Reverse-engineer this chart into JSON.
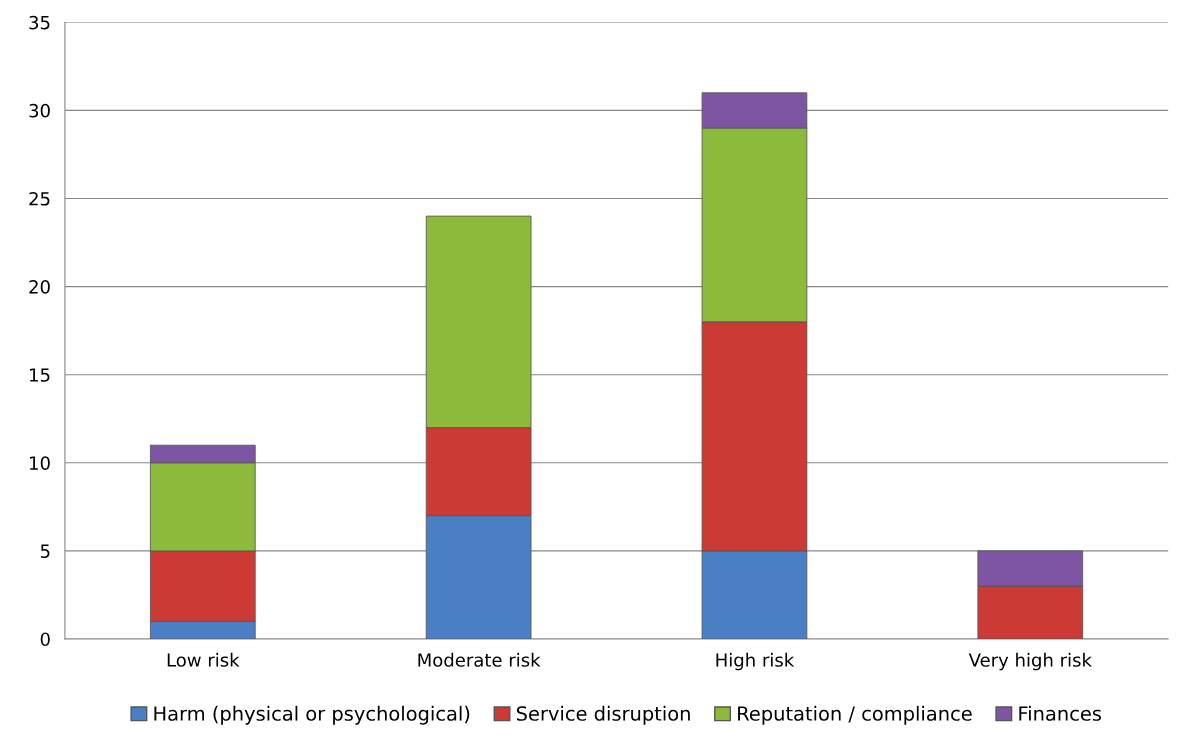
{
  "chart_data": {
    "type": "bar",
    "stacked": true,
    "categories": [
      "Low risk",
      "Moderate risk",
      "High risk",
      "Very high risk"
    ],
    "series": [
      {
        "name": "Harm (physical or psychological)",
        "color": "#4a7fc6",
        "values": [
          1,
          7,
          5,
          0
        ]
      },
      {
        "name": "Service disruption",
        "color": "#cc3a36",
        "values": [
          4,
          5,
          13,
          3
        ]
      },
      {
        "name": "Reputation / compliance",
        "color": "#8cbb3c",
        "values": [
          5,
          12,
          11,
          0
        ]
      },
      {
        "name": "Finances",
        "color": "#7d55a3",
        "values": [
          1,
          0,
          2,
          2
        ]
      }
    ],
    "ylim": [
      0,
      35
    ],
    "yticks": [
      0,
      5,
      10,
      15,
      20,
      25,
      30,
      35
    ],
    "grid": "y",
    "legend": "bottom"
  }
}
